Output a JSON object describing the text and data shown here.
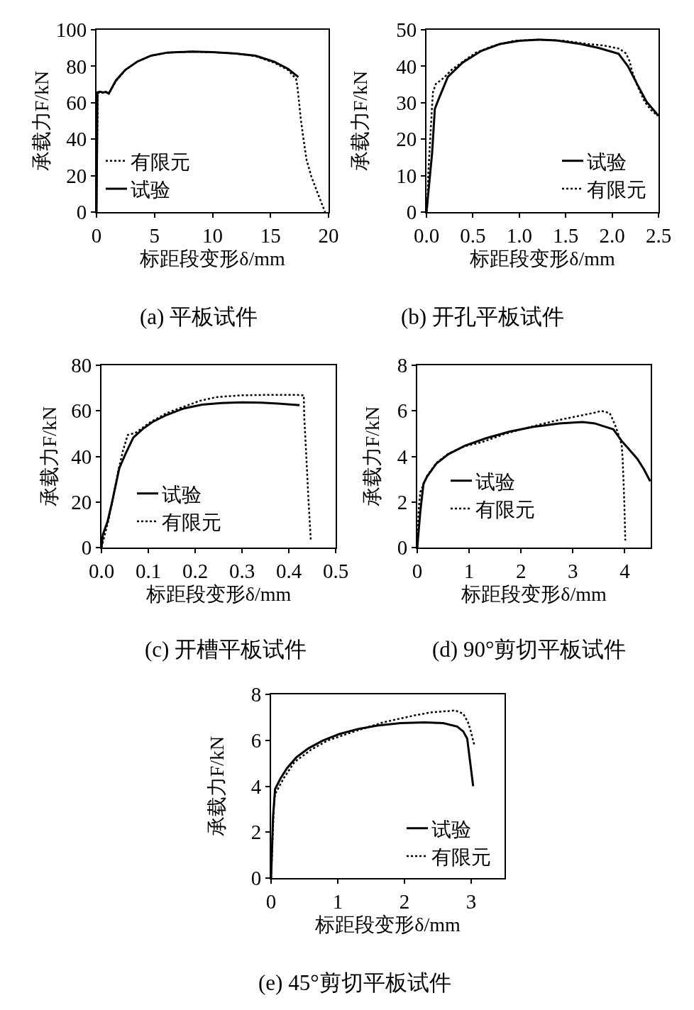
{
  "chart_data": [
    {
      "type": "line",
      "title": "(a) 平板试件",
      "xlabel": "标距段变形δ/mm",
      "ylabel": "承载力F/kN",
      "xlim": [
        0,
        20
      ],
      "xticks": [
        0,
        5,
        10,
        15,
        20
      ],
      "ylim": [
        0,
        100
      ],
      "yticks": [
        0,
        20,
        40,
        60,
        80,
        100
      ],
      "legend": "bottom left",
      "series": [
        {
          "name": "有限元",
          "color": "#000000",
          "line_style": "dotted",
          "x": [
            0,
            0.1,
            0.5,
            1.1,
            1.7,
            2.5,
            3.5,
            4.7,
            6.1,
            8.2,
            10.0,
            12.0,
            13.7,
            15.3,
            16.5,
            17.2,
            17.3,
            17.4,
            17.6,
            17.8,
            18.1,
            18.5,
            19.0,
            19.7
          ],
          "values": [
            0,
            65.5,
            65.5,
            65.5,
            72,
            78,
            82.5,
            85.8,
            87.5,
            88,
            87.7,
            87,
            85.5,
            82,
            78,
            73,
            69.6,
            63.8,
            51.5,
            41.8,
            28.8,
            19.8,
            11.4,
            0
          ]
        },
        {
          "name": "试验",
          "color": "#000000",
          "line_style": "solid",
          "x": [
            0,
            0.08,
            0.3,
            0.6,
            0.8,
            1.06,
            1.67,
            2.48,
            3.5,
            4.7,
            6.1,
            8.2,
            10.0,
            12.0,
            13.7,
            15.3,
            16.5,
            17.4
          ],
          "values": [
            0,
            65.7,
            66,
            65.6,
            66,
            65,
            72.2,
            78,
            82.5,
            85.8,
            87.5,
            88,
            87.7,
            87,
            85.8,
            82.5,
            78.6,
            74.1
          ]
        }
      ]
    },
    {
      "type": "line",
      "title": "(b) 开孔平板试件",
      "xlabel": "标距段变形δ/mm",
      "ylabel": "承载力F/kN",
      "xlim": [
        0,
        2.5
      ],
      "xticks": [
        {
          "value": 0,
          "label": "0.0"
        },
        0.5,
        {
          "value": 1,
          "label": "1.0"
        },
        1.5,
        {
          "value": 2,
          "label": "2.0"
        },
        2.5
      ],
      "ylim": [
        0,
        50
      ],
      "yticks": [
        0,
        10,
        20,
        30,
        40,
        50
      ],
      "legend": "bottom right",
      "series": [
        {
          "name": "试验",
          "color": "#000000",
          "line_style": "solid",
          "x": [
            0,
            0.06,
            0.09,
            0.13,
            0.23,
            0.39,
            0.59,
            0.79,
            1.0,
            1.2,
            1.4,
            1.66,
            1.86,
            2.07,
            2.17,
            2.27,
            2.37,
            2.5
          ],
          "values": [
            0,
            16,
            28.3,
            30.9,
            37.1,
            41,
            44.2,
            46.1,
            47,
            47.3,
            47.1,
            46.1,
            45,
            43.4,
            40,
            35.1,
            30.3,
            26.4
          ]
        },
        {
          "name": "有限元",
          "color": "#000000",
          "line_style": "dotted",
          "x": [
            0,
            0.01,
            0.02,
            0.04,
            0.06,
            0.07,
            0.1,
            0.18,
            0.27,
            0.36,
            0.53,
            0.71,
            0.95,
            1.2,
            1.48,
            1.74,
            1.91,
            2.08,
            2.15,
            2.19,
            2.21,
            2.27,
            2.35,
            2.42,
            2.49
          ],
          "values": [
            0,
            1.8,
            10.9,
            19.9,
            29,
            32.9,
            35.1,
            36.7,
            39,
            40.7,
            43.7,
            45.5,
            47,
            47.3,
            47,
            46.1,
            45.7,
            44.8,
            43.5,
            41.3,
            39,
            34.8,
            30.3,
            28,
            26.4
          ]
        }
      ]
    },
    {
      "type": "line",
      "title": "(c) 开槽平板试件",
      "xlabel": "标距段变形δ/mm",
      "ylabel": "承载力F/kN",
      "xlim": [
        0,
        0.5
      ],
      "xticks": [
        {
          "value": 0,
          "label": "0.0"
        },
        0.1,
        0.2,
        0.3,
        0.4,
        0.5
      ],
      "ylim": [
        0,
        80
      ],
      "yticks": [
        0,
        20,
        40,
        60,
        80
      ],
      "legend": "bottom left",
      "series": [
        {
          "name": "试验",
          "color": "#000000",
          "line_style": "solid",
          "x": [
            0,
            0.003,
            0.013,
            0.023,
            0.038,
            0.051,
            0.068,
            0.089,
            0.109,
            0.139,
            0.175,
            0.215,
            0.256,
            0.3,
            0.342,
            0.377,
            0.423
          ],
          "values": [
            0,
            5.7,
            11.4,
            20.3,
            34.8,
            41,
            48.3,
            52.2,
            55.1,
            58.2,
            61,
            62.7,
            63.4,
            63.7,
            63.6,
            63.2,
            62.5
          ]
        },
        {
          "name": "有限元",
          "color": "#000000",
          "line_style": "dotted",
          "x": [
            0,
            0.005,
            0.015,
            0.025,
            0.035,
            0.046,
            0.056,
            0.073,
            0.104,
            0.139,
            0.175,
            0.21,
            0.245,
            0.296,
            0.352,
            0.418,
            0.432,
            0.433,
            0.437,
            0.442,
            0.447
          ],
          "values": [
            0,
            4,
            12,
            22,
            33,
            42.6,
            49.4,
            50.4,
            55,
            59,
            61.8,
            64.4,
            66,
            66.8,
            67,
            67,
            66.8,
            57.1,
            41.6,
            20.8,
            3.1
          ]
        }
      ]
    },
    {
      "type": "line",
      "title": "(d) 90°剪切平板试件",
      "xlabel": "标距段变形δ/mm",
      "ylabel": "承载力F/kN",
      "xlim": [
        0,
        4.5
      ],
      "xticks": [
        0,
        1,
        2,
        3,
        4
      ],
      "ylim": [
        0,
        8
      ],
      "yticks": [
        0,
        2,
        4,
        6,
        8
      ],
      "legend": "bottom left",
      "series": [
        {
          "name": "试验",
          "color": "#000000",
          "line_style": "solid",
          "x": [
            0,
            0.06,
            0.12,
            0.19,
            0.37,
            0.6,
            0.92,
            1.33,
            1.78,
            2.24,
            2.74,
            3.19,
            3.42,
            3.6,
            3.78,
            3.94,
            4.24,
            4.37,
            4.49
          ],
          "values": [
            0,
            1.6,
            2.8,
            3.12,
            3.69,
            4.1,
            4.47,
            4.8,
            5.09,
            5.3,
            5.45,
            5.51,
            5.45,
            5.32,
            5.19,
            4.68,
            3.9,
            3.43,
            2.91
          ]
        },
        {
          "name": "有限元",
          "color": "#000000",
          "line_style": "dotted",
          "x": [
            0,
            0.03,
            0.06,
            0.19,
            0.37,
            0.6,
            0.92,
            1.24,
            1.69,
            2.19,
            2.65,
            3.1,
            3.42,
            3.55,
            3.71,
            3.78,
            3.84,
            3.94,
            3.96,
            3.99,
            4.01
          ],
          "values": [
            0,
            1.77,
            2.44,
            3.15,
            3.72,
            4.12,
            4.45,
            4.62,
            4.99,
            5.3,
            5.56,
            5.77,
            5.92,
            6.0,
            5.9,
            5.56,
            5.22,
            4.52,
            3.84,
            2.08,
            0.31
          ]
        }
      ]
    },
    {
      "type": "line",
      "title": "(e) 45°剪切平板试件",
      "xlabel": "标距段变形δ/mm",
      "ylabel": "承载力F/kN",
      "xlim": [
        0,
        3.5
      ],
      "xticks": [
        0,
        1,
        2,
        3
      ],
      "ylim": [
        0,
        8
      ],
      "yticks": [
        0,
        2,
        4,
        6,
        8
      ],
      "legend": "bottom right",
      "series": [
        {
          "name": "试验",
          "color": "#000000",
          "line_style": "solid",
          "x": [
            0,
            0.03,
            0.06,
            0.14,
            0.24,
            0.38,
            0.56,
            0.77,
            1.02,
            1.3,
            1.59,
            1.94,
            2.3,
            2.58,
            2.79,
            2.88,
            2.94,
            3.03
          ],
          "values": [
            0,
            2.68,
            3.87,
            4.33,
            4.79,
            5.26,
            5.65,
            5.98,
            6.27,
            6.49,
            6.64,
            6.75,
            6.78,
            6.75,
            6.6,
            6.39,
            6.08,
            4.0
          ]
        },
        {
          "name": "有限元",
          "color": "#000000",
          "line_style": "dotted",
          "x": [
            0,
            0.04,
            0.06,
            0.19,
            0.35,
            0.6,
            0.84,
            1.2,
            1.45,
            1.68,
            1.91,
            2.16,
            2.41,
            2.65,
            2.76,
            2.88,
            2.95,
            2.99,
            3.02,
            3.05
          ],
          "values": [
            0,
            2.99,
            3.66,
            4.35,
            5.05,
            5.59,
            5.98,
            6.34,
            6.57,
            6.78,
            6.93,
            7.09,
            7.22,
            7.27,
            7.3,
            7.16,
            6.8,
            6.44,
            6.1,
            5.75
          ]
        }
      ]
    }
  ]
}
